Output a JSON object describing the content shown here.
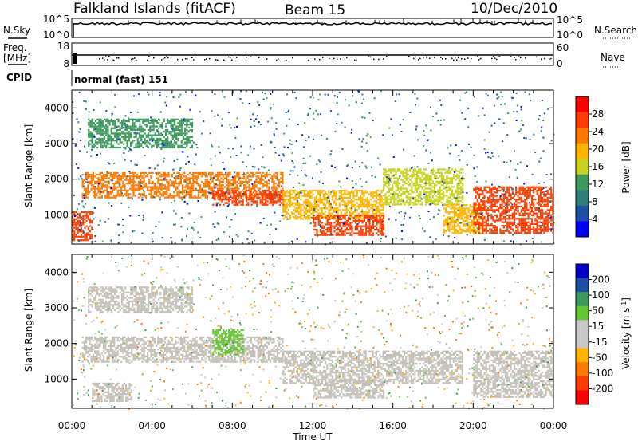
{
  "header": {
    "station": "Falkland Islands (fitACF)",
    "beam": "Beam 15",
    "date": "10/Dec/2010"
  },
  "side_labels": {
    "nsky": "N.Sky",
    "freq": "Freq.",
    "freq_unit": "[MHz]",
    "cpid": "CPID",
    "nsearch": "N.Search",
    "nave": "Nave"
  },
  "panels": {
    "cpid_text": "normal (fast) 151",
    "nsky_ticks": [
      "10^5",
      "10^0"
    ],
    "nsearch_ticks": [
      "10^5",
      "10^0"
    ],
    "freq_ticks": [
      "18",
      "8"
    ],
    "nave_ticks": [
      "60",
      "0"
    ],
    "xlabel": "Time UT"
  },
  "colors": {
    "power_scale": [
      "#0000ff",
      "#1e4fa6",
      "#2e7f7a",
      "#3c9b5c",
      "#c8d21e",
      "#ffb400",
      "#ff7800",
      "#ff3c00",
      "#ff0000"
    ],
    "velocity_scale": [
      "#0000c8",
      "#1e4fa6",
      "#3c9b5c",
      "#64c832",
      "#c8c8c8",
      "#c8c8c8",
      "#ffb400",
      "#ff7800",
      "#ff3c00",
      "#ff0000"
    ],
    "ground_scatter": "#c4c0b8"
  },
  "chart_data": [
    {
      "type": "heatmap",
      "name": "power",
      "ylabel": "Slant Range [km]",
      "xlabel": "Time UT",
      "x_ticks": [
        "00:00",
        "04:00",
        "08:00",
        "12:00",
        "16:00",
        "20:00",
        "00:00"
      ],
      "x_range_hours": [
        0,
        24
      ],
      "y_range_km": [
        180,
        4500
      ],
      "y_ticks": [
        1000,
        2000,
        3000,
        4000
      ],
      "colorbar": {
        "label": "Power [dB]",
        "ticks": [
          4,
          8,
          12,
          16,
          20,
          24,
          28
        ],
        "range": [
          0,
          30
        ]
      },
      "bands": [
        {
          "t": [
            0.5,
            10.5
          ],
          "r": [
            1500,
            2200
          ],
          "level": 22
        },
        {
          "t": [
            7.0,
            10.5
          ],
          "r": [
            1300,
            1700
          ],
          "level": 24
        },
        {
          "t": [
            10.5,
            15.5
          ],
          "r": [
            900,
            1700
          ],
          "level": 18
        },
        {
          "t": [
            12.0,
            15.5
          ],
          "r": [
            450,
            1000
          ],
          "level": 26
        },
        {
          "t": [
            15.5,
            19.5
          ],
          "r": [
            1300,
            2300
          ],
          "level": 14
        },
        {
          "t": [
            18.5,
            20.5
          ],
          "r": [
            500,
            1300
          ],
          "level": 18
        },
        {
          "t": [
            20.0,
            24.0
          ],
          "r": [
            500,
            1800
          ],
          "level": 24
        },
        {
          "t": [
            0.8,
            6.0
          ],
          "r": [
            2900,
            3700
          ],
          "level": 10
        },
        {
          "t": [
            0.0,
            1.0
          ],
          "r": [
            300,
            1100
          ],
          "level": 26
        }
      ]
    },
    {
      "type": "heatmap",
      "name": "velocity",
      "ylabel": "Slant Range [km]",
      "xlabel": "Time UT",
      "x_ticks": [
        "00:00",
        "04:00",
        "08:00",
        "12:00",
        "16:00",
        "20:00",
        "00:00"
      ],
      "x_range_hours": [
        0,
        24
      ],
      "y_range_km": [
        180,
        4500
      ],
      "y_ticks": [
        1000,
        2000,
        3000,
        4000
      ],
      "colorbar": {
        "label": "Velocity [m s^-1]",
        "ticks": [
          200,
          100,
          50,
          15,
          -15,
          -50,
          -100,
          -200
        ],
        "range": [
          -250,
          250
        ]
      },
      "bands": [
        {
          "t": [
            0.5,
            10.5
          ],
          "r": [
            1500,
            2200
          ],
          "level": 0
        },
        {
          "t": [
            7.0,
            8.5
          ],
          "r": [
            1700,
            2400
          ],
          "level": 60
        },
        {
          "t": [
            10.5,
            19.5
          ],
          "r": [
            900,
            1800
          ],
          "level": 0
        },
        {
          "t": [
            12.0,
            15.5
          ],
          "r": [
            500,
            1000
          ],
          "level": 0
        },
        {
          "t": [
            20.0,
            24.0
          ],
          "r": [
            500,
            1800
          ],
          "level": 0
        },
        {
          "t": [
            0.8,
            6.0
          ],
          "r": [
            2900,
            3600
          ],
          "level": 0
        },
        {
          "t": [
            1.0,
            3.0
          ],
          "r": [
            400,
            900
          ],
          "level": 0
        }
      ]
    }
  ]
}
